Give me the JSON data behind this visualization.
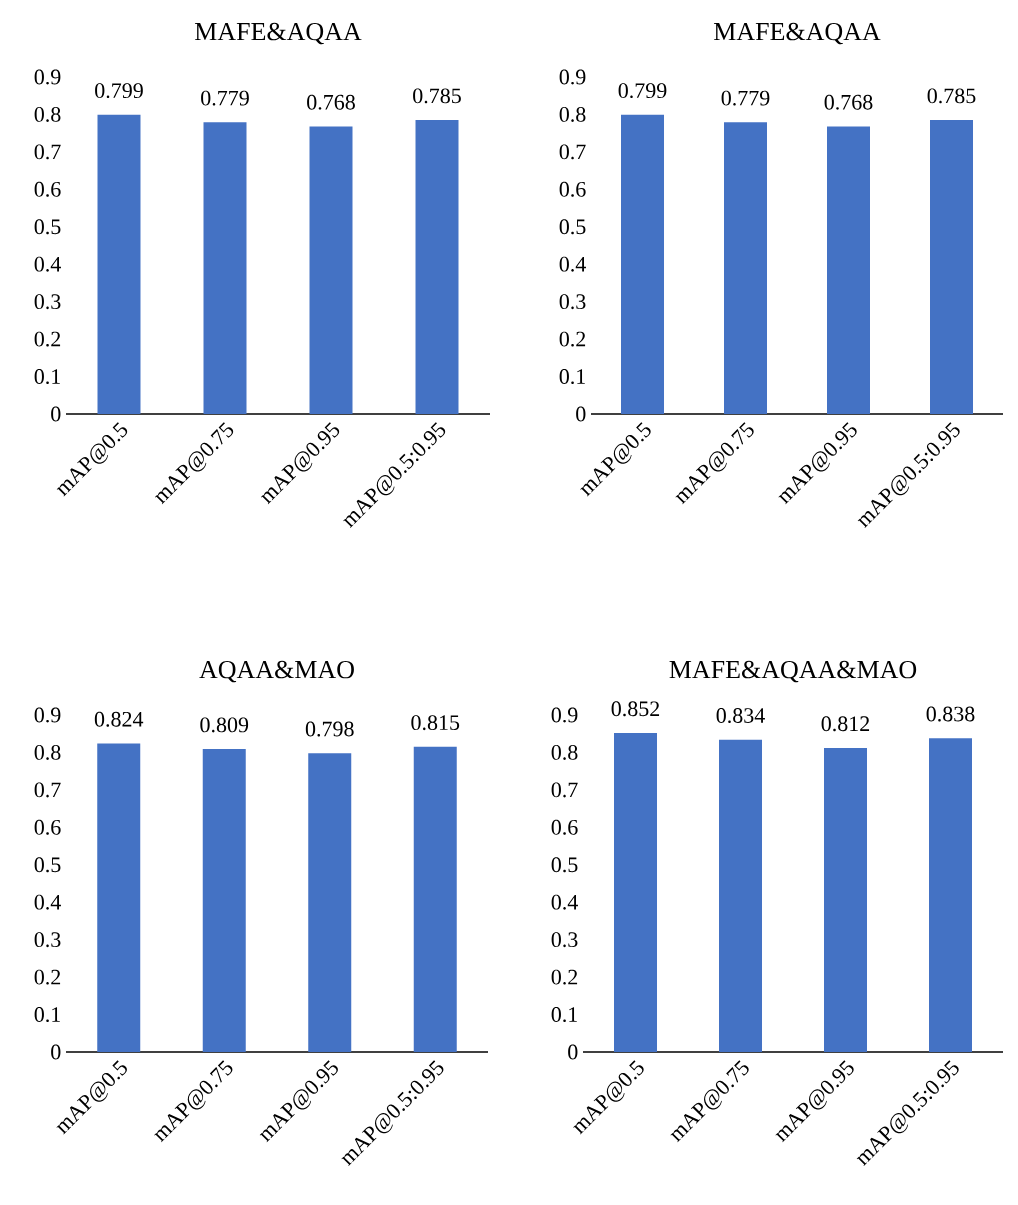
{
  "chart_data": [
    {
      "type": "bar",
      "title": "MAFE&AQAA",
      "categories": [
        "mAP@0.5",
        "mAP@0.75",
        "mAP@0.95",
        "mAP@0.5:0.95"
      ],
      "values": [
        0.799,
        0.779,
        0.768,
        0.785
      ],
      "color": "#4472c4",
      "data_labels": true,
      "ylim": [
        0,
        0.9
      ],
      "yticks": [
        0,
        0.1,
        0.2,
        0.3,
        0.4,
        0.5,
        0.6,
        0.7,
        0.8,
        0.9
      ]
    },
    {
      "type": "bar",
      "title": "MAFE&AQAA",
      "categories": [
        "mAP@0.5",
        "mAP@0.75",
        "mAP@0.95",
        "mAP@0.5:0.95"
      ],
      "values": [
        0.799,
        0.779,
        0.768,
        0.785
      ],
      "color": "#4472c4",
      "data_labels": true,
      "ylim": [
        0,
        0.9
      ],
      "yticks": [
        0,
        0.1,
        0.2,
        0.3,
        0.4,
        0.5,
        0.6,
        0.7,
        0.8,
        0.9
      ]
    },
    {
      "type": "bar",
      "title": "AQAA&MAO",
      "categories": [
        "mAP@0.5",
        "mAP@0.75",
        "mAP@0.95",
        "mAP@0.5:0.95"
      ],
      "values": [
        0.824,
        0.809,
        0.798,
        0.815
      ],
      "color": "#4472c4",
      "data_labels": true,
      "ylim": [
        0,
        0.9
      ],
      "yticks": [
        0,
        0.1,
        0.2,
        0.3,
        0.4,
        0.5,
        0.6,
        0.7,
        0.8,
        0.9
      ]
    },
    {
      "type": "bar",
      "title": "MAFE&AQAA&MAO",
      "categories": [
        "mAP@0.5",
        "mAP@0.75",
        "mAP@0.95",
        "mAP@0.5:0.95"
      ],
      "values": [
        0.852,
        0.834,
        0.812,
        0.838
      ],
      "color": "#4472c4",
      "data_labels": true,
      "ylim": [
        0,
        0.9
      ],
      "yticks": [
        0,
        0.1,
        0.2,
        0.3,
        0.4,
        0.5,
        0.6,
        0.7,
        0.8,
        0.9
      ]
    }
  ]
}
